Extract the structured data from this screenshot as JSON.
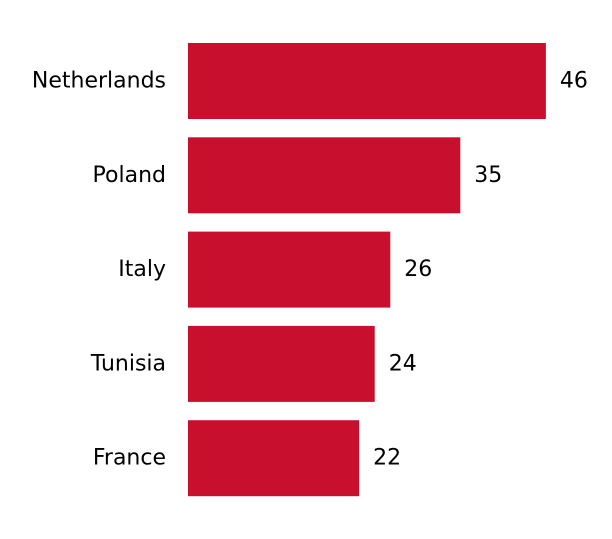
{
  "chart_data": {
    "type": "bar",
    "orientation": "horizontal",
    "categories": [
      "Netherlands",
      "Poland",
      "Italy",
      "Tunisia",
      "France"
    ],
    "values": [
      46,
      35,
      26,
      24,
      22
    ],
    "title": "",
    "xlabel": "",
    "ylabel": "",
    "bar_color": "#C8102E",
    "grid": false,
    "axes_visible": false,
    "data_labels": true
  }
}
